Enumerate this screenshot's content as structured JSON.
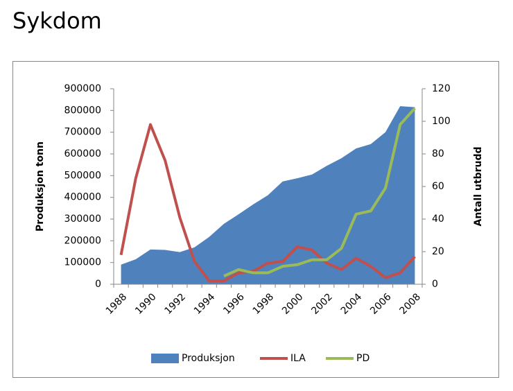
{
  "title": "Sykdom",
  "chart_data": {
    "type": "area-line",
    "categories": [
      "1988",
      null,
      "1990",
      null,
      "1992",
      null,
      "1994",
      null,
      "1996",
      null,
      "1998",
      null,
      "2000",
      null,
      "2002",
      null,
      "2004",
      null,
      "2006",
      null,
      "2008"
    ],
    "series": [
      {
        "name": "Produksjon",
        "type": "area",
        "color": "#4f81bd",
        "axis": "y",
        "values": [
          90000,
          115000,
          160000,
          158000,
          148000,
          170000,
          218000,
          278000,
          322000,
          368000,
          410000,
          473000,
          488000,
          505000,
          545000,
          580000,
          625000,
          645000,
          700000,
          820000,
          815000
        ]
      },
      {
        "name": "ILA",
        "type": "line",
        "color": "#c0504d",
        "axis": "y2",
        "values": [
          18,
          65,
          98,
          76,
          41,
          14,
          2,
          2,
          7,
          8,
          13,
          14,
          23,
          21,
          13,
          9,
          16,
          11,
          4,
          7,
          17
        ]
      },
      {
        "name": "PD",
        "type": "line",
        "color": "#9bbb59",
        "axis": "y2",
        "values": [
          null,
          null,
          null,
          null,
          null,
          null,
          null,
          5,
          9,
          7,
          7,
          11,
          12,
          15,
          15,
          22,
          43,
          45,
          59,
          98,
          108
        ]
      }
    ],
    "ylabel": "Produksjon tonn",
    "y2label": "Antall utbrudd",
    "ylim": [
      0,
      900000
    ],
    "yticks": [
      0,
      100000,
      200000,
      300000,
      400000,
      500000,
      600000,
      700000,
      800000,
      900000
    ],
    "y2lim": [
      0,
      120
    ],
    "y2ticks": [
      0,
      20,
      40,
      60,
      80,
      100,
      120
    ],
    "grid": false,
    "legend": "bottom"
  }
}
